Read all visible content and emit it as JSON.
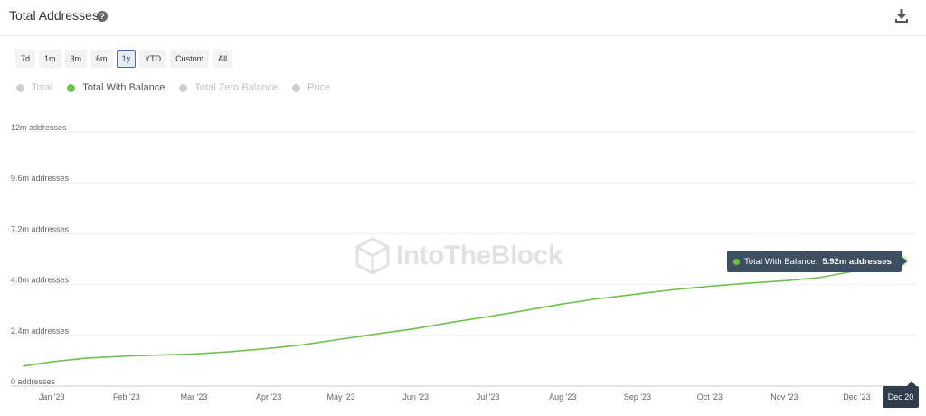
{
  "header": {
    "title": "Total Addresses",
    "help_icon": "help-circle-icon",
    "download_icon": "download-icon"
  },
  "ranges": [
    {
      "label": "7d",
      "active": false
    },
    {
      "label": "1m",
      "active": false
    },
    {
      "label": "3m",
      "active": false
    },
    {
      "label": "6m",
      "active": false
    },
    {
      "label": "1y",
      "active": true
    },
    {
      "label": "YTD",
      "active": false
    },
    {
      "label": "Custom",
      "active": false
    },
    {
      "label": "All",
      "active": false
    }
  ],
  "legend": [
    {
      "label": "Total",
      "enabled": false,
      "color": "#cfcfcf"
    },
    {
      "label": "Total With Balance",
      "enabled": true,
      "color": "#6dc24b"
    },
    {
      "label": "Total Zero Balance",
      "enabled": false,
      "color": "#cfcfcf"
    },
    {
      "label": "Price",
      "enabled": false,
      "color": "#cfcfcf"
    }
  ],
  "watermark": "IntoTheBlock",
  "tooltip": {
    "label": "Total With Balance:",
    "value": "5.92m addresses"
  },
  "date_flag": "Dec 20",
  "chart_data": {
    "type": "line",
    "title": "Total Addresses",
    "xlabel": "",
    "ylabel": "",
    "y_tick_labels": [
      "0 addresses",
      "2.4m addresses",
      "4.8m addresses",
      "7.2m addresses",
      "9.6m addresses",
      "12m addresses"
    ],
    "y_ticks": [
      0,
      2.4,
      4.8,
      7.2,
      9.6,
      12
    ],
    "x_tick_labels": [
      "Jan '23",
      "Feb '23",
      "Mar '23",
      "Apr '23",
      "May '23",
      "Jun '23",
      "Jul '23",
      "Aug '23",
      "Sep '23",
      "Oct '23",
      "Nov '23",
      "Dec '23"
    ],
    "ylim": [
      0,
      12
    ],
    "y_unit": "m addresses",
    "grid": true,
    "series": [
      {
        "name": "Total With Balance",
        "color": "#6dc24b",
        "x": [
          "2022-12-20",
          "2023-01-01",
          "2023-01-15",
          "2023-02-01",
          "2023-02-15",
          "2023-03-01",
          "2023-03-15",
          "2023-04-01",
          "2023-04-15",
          "2023-05-01",
          "2023-05-15",
          "2023-06-01",
          "2023-06-15",
          "2023-07-01",
          "2023-07-15",
          "2023-08-01",
          "2023-08-15",
          "2023-09-01",
          "2023-09-15",
          "2023-10-01",
          "2023-10-15",
          "2023-11-01",
          "2023-11-15",
          "2023-12-01",
          "2023-12-20"
        ],
        "values": [
          0.95,
          1.15,
          1.32,
          1.42,
          1.47,
          1.52,
          1.62,
          1.78,
          1.95,
          2.22,
          2.45,
          2.72,
          3.0,
          3.28,
          3.55,
          3.88,
          4.12,
          4.35,
          4.55,
          4.72,
          4.85,
          4.98,
          5.12,
          5.45,
          5.92
        ]
      }
    ]
  }
}
